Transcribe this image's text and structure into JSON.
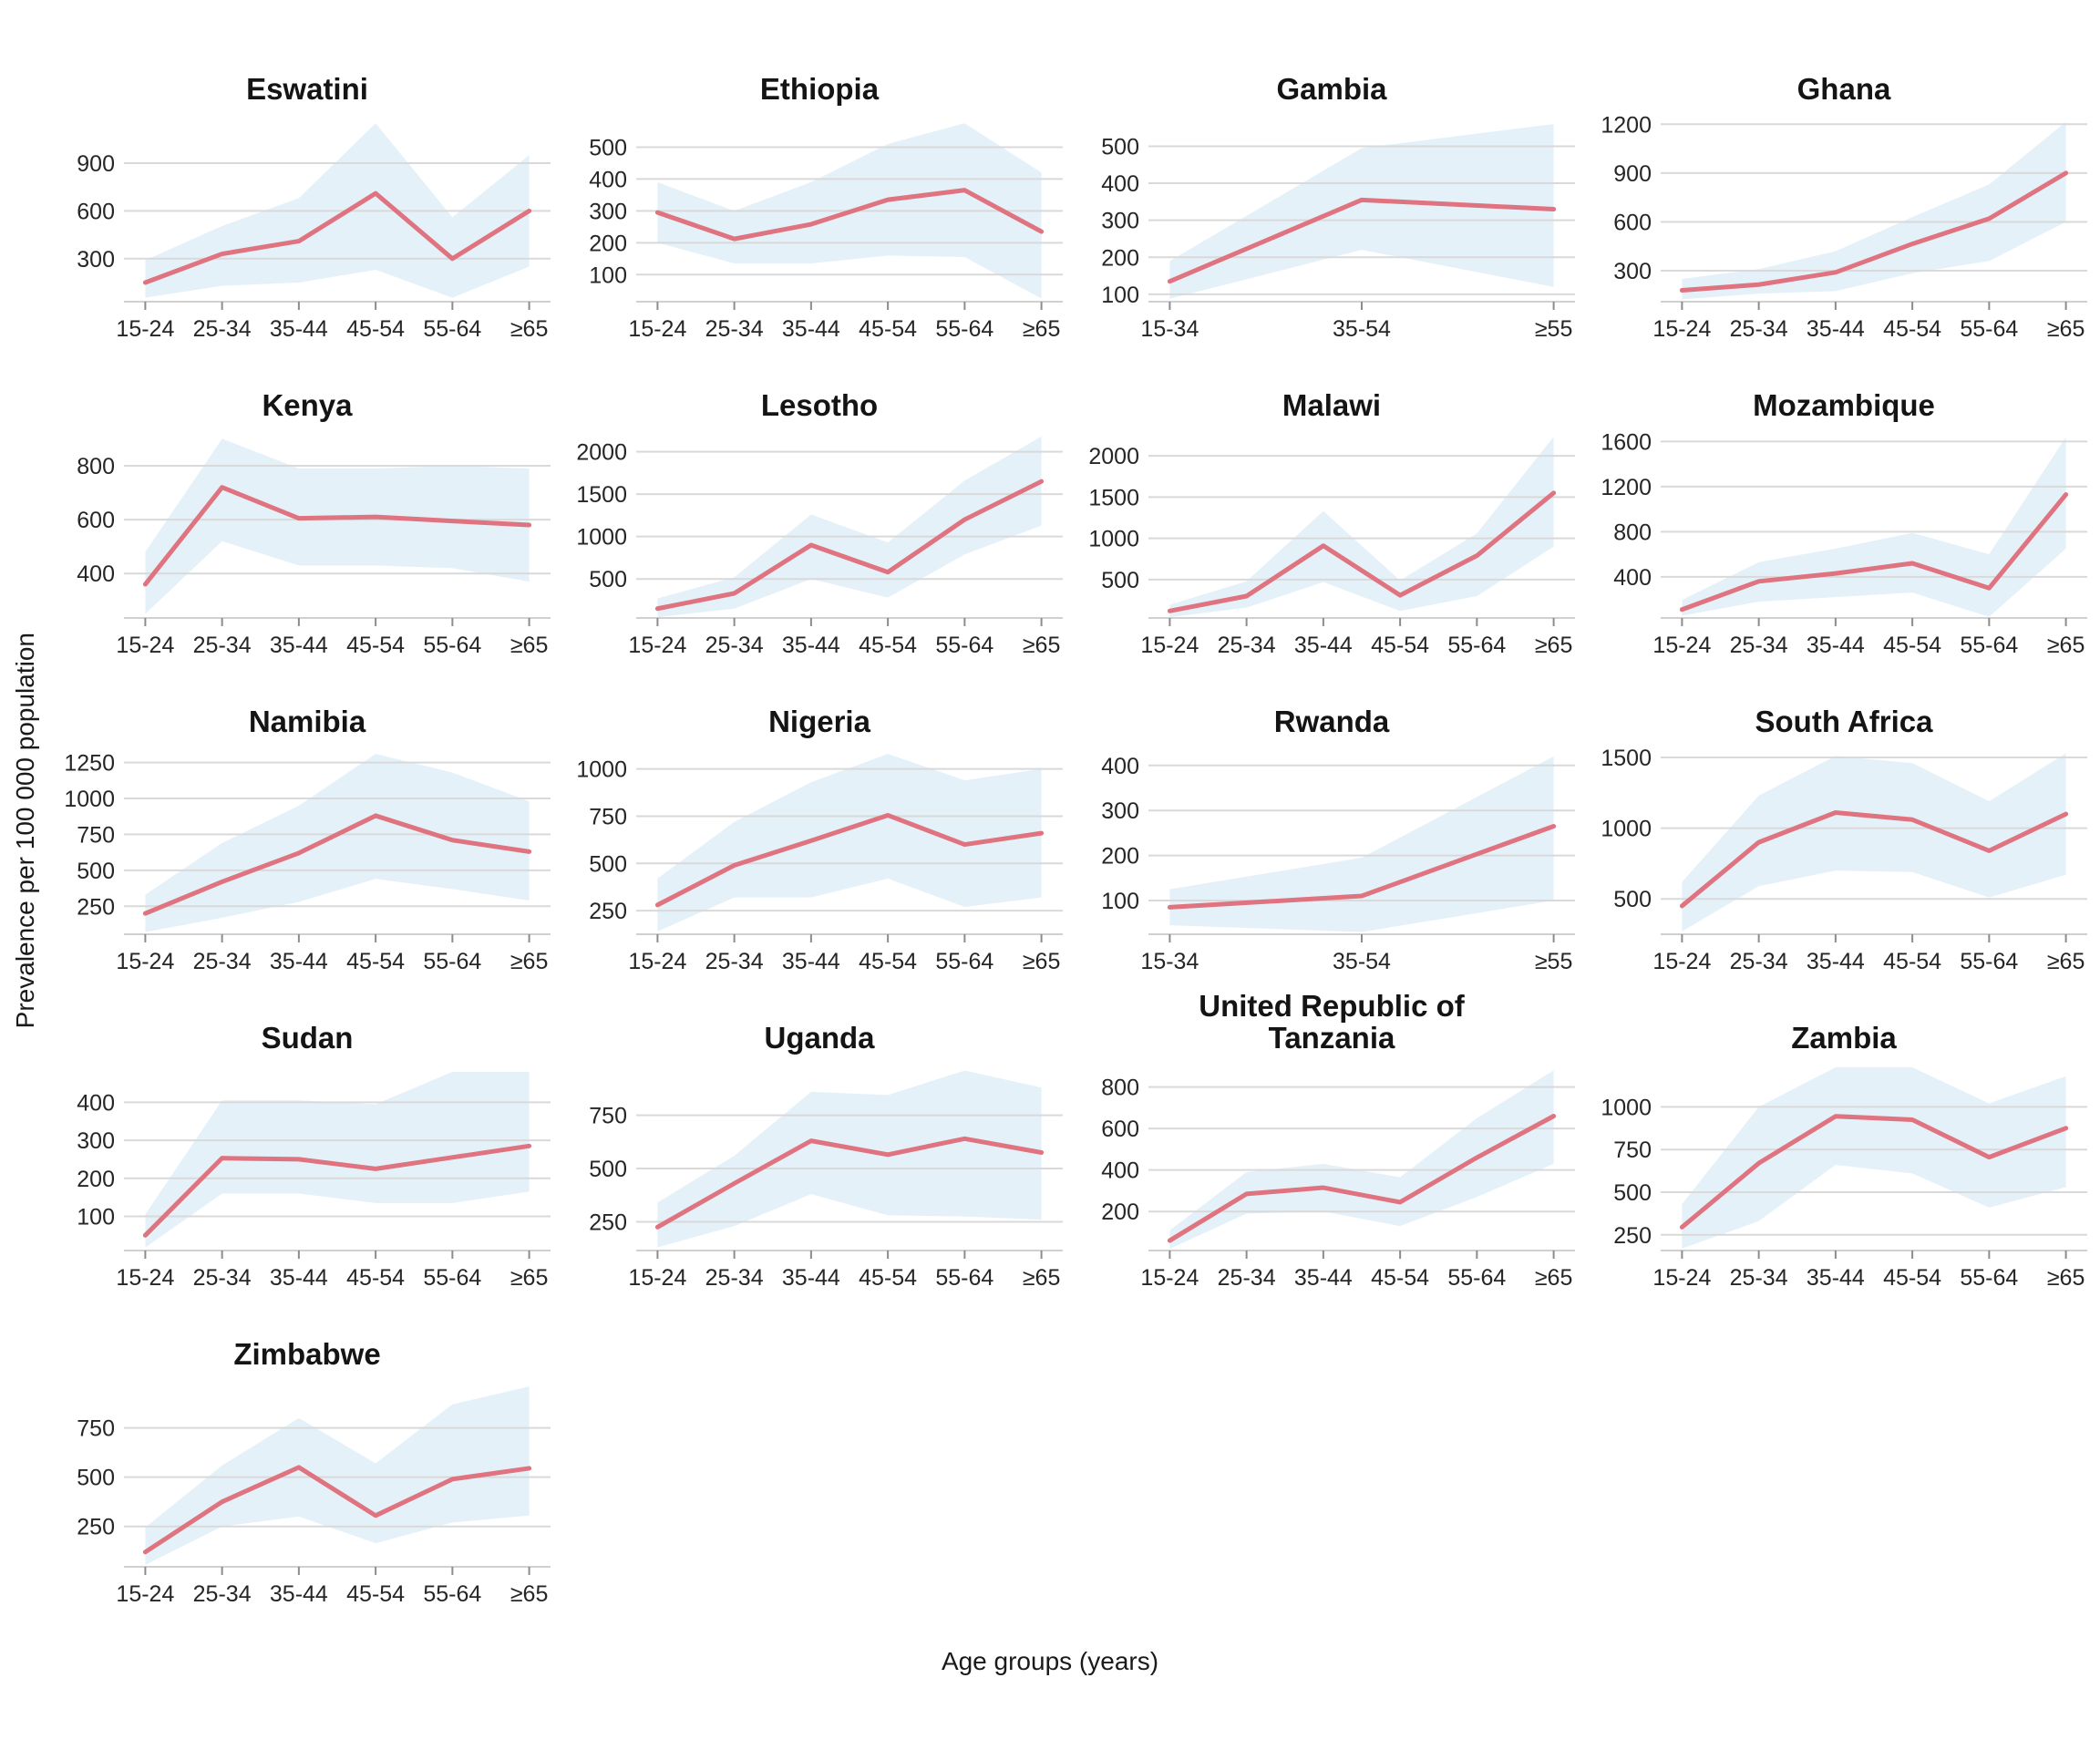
{
  "figure": {
    "y_axis_label": "Prevalence per 100 000 population",
    "x_axis_label": "Age groups (years)",
    "colors": {
      "line": "#df737f",
      "band": "#e4f1f9",
      "grid": "#d9d9d9",
      "axis_line": "#d0d0d0",
      "tick_mark": "#8c8c8c",
      "tick_text": "#262626",
      "title_text": "#141414"
    }
  },
  "chart_data": [
    {
      "type": "line",
      "title": "Eswatini",
      "categories": [
        "15-24",
        "25-34",
        "35-44",
        "45-54",
        "55-64",
        "≥65"
      ],
      "values": [
        150,
        330,
        410,
        710,
        300,
        600
      ],
      "band_lower": [
        55,
        130,
        150,
        230,
        55,
        250
      ],
      "band_upper": [
        290,
        505,
        680,
        1150,
        560,
        950
      ],
      "yticks": [
        300,
        600,
        900
      ],
      "ylim": [
        30,
        1180
      ]
    },
    {
      "type": "line",
      "title": "Ethiopia",
      "categories": [
        "15-24",
        "25-34",
        "35-44",
        "45-54",
        "55-64",
        "≥65"
      ],
      "values": [
        295,
        212,
        258,
        335,
        365,
        235
      ],
      "band_lower": [
        200,
        135,
        135,
        160,
        155,
        25
      ],
      "band_upper": [
        390,
        300,
        390,
        510,
        575,
        420
      ],
      "yticks": [
        100,
        200,
        300,
        400,
        500
      ],
      "ylim": [
        15,
        590
      ]
    },
    {
      "type": "line",
      "title": "Gambia",
      "categories": [
        "15-34",
        "35-54",
        "≥55"
      ],
      "values": [
        135,
        355,
        330
      ],
      "band_lower": [
        88,
        220,
        120
      ],
      "band_upper": [
        190,
        495,
        560
      ],
      "yticks": [
        100,
        200,
        300,
        400,
        500
      ],
      "ylim": [
        80,
        575
      ]
    },
    {
      "type": "line",
      "title": "Ghana",
      "categories": [
        "15-24",
        "25-34",
        "35-44",
        "45-54",
        "55-64",
        "≥65"
      ],
      "values": [
        180,
        215,
        290,
        465,
        620,
        900
      ],
      "band_lower": [
        125,
        160,
        175,
        285,
        360,
        600
      ],
      "band_upper": [
        250,
        310,
        420,
        630,
        830,
        1215
      ],
      "yticks": [
        300,
        600,
        900,
        1200
      ],
      "ylim": [
        110,
        1235
      ]
    },
    {
      "type": "line",
      "title": "Kenya",
      "categories": [
        "15-24",
        "25-34",
        "35-44",
        "45-54",
        "55-64",
        "≥65"
      ],
      "values": [
        360,
        720,
        605,
        610,
        595,
        580
      ],
      "band_lower": [
        250,
        520,
        430,
        430,
        420,
        370
      ],
      "band_upper": [
        480,
        900,
        790,
        790,
        800,
        790
      ],
      "yticks": [
        400,
        600,
        800
      ],
      "ylim": [
        235,
        915
      ]
    },
    {
      "type": "line",
      "title": "Lesotho",
      "categories": [
        "15-24",
        "25-34",
        "35-44",
        "45-54",
        "55-64",
        "≥65"
      ],
      "values": [
        150,
        330,
        900,
        580,
        1200,
        1650
      ],
      "band_lower": [
        50,
        150,
        500,
        280,
        790,
        1130
      ],
      "band_upper": [
        270,
        520,
        1260,
        930,
        1660,
        2180
      ],
      "yticks": [
        500,
        1000,
        1500,
        2000
      ],
      "ylim": [
        40,
        2200
      ]
    },
    {
      "type": "line",
      "title": "Malawi",
      "categories": [
        "15-24",
        "25-34",
        "35-44",
        "45-54",
        "55-64",
        "≥65"
      ],
      "values": [
        120,
        300,
        910,
        310,
        790,
        1550
      ],
      "band_lower": [
        45,
        160,
        470,
        120,
        300,
        900
      ],
      "band_upper": [
        195,
        480,
        1330,
        490,
        1060,
        2230
      ],
      "yticks": [
        500,
        1000,
        1500,
        2000
      ],
      "ylim": [
        35,
        2255
      ]
    },
    {
      "type": "line",
      "title": "Mozambique",
      "categories": [
        "15-24",
        "25-34",
        "35-44",
        "45-54",
        "55-64",
        "≥65"
      ],
      "values": [
        110,
        360,
        430,
        520,
        300,
        1130
      ],
      "band_lower": [
        55,
        180,
        220,
        260,
        45,
        650
      ],
      "band_upper": [
        195,
        530,
        650,
        790,
        600,
        1640
      ],
      "yticks": [
        400,
        800,
        1200,
        1600
      ],
      "ylim": [
        35,
        1660
      ]
    },
    {
      "type": "line",
      "title": "Namibia",
      "categories": [
        "15-24",
        "25-34",
        "35-44",
        "45-54",
        "55-64",
        "≥65"
      ],
      "values": [
        200,
        420,
        620,
        880,
        710,
        630
      ],
      "band_lower": [
        70,
        170,
        280,
        440,
        370,
        290
      ],
      "band_upper": [
        330,
        690,
        950,
        1310,
        1180,
        980
      ],
      "yticks": [
        250,
        500,
        750,
        1000,
        1250
      ],
      "ylim": [
        55,
        1330
      ]
    },
    {
      "type": "line",
      "title": "Nigeria",
      "categories": [
        "15-24",
        "25-34",
        "35-44",
        "45-54",
        "55-64",
        "≥65"
      ],
      "values": [
        280,
        490,
        620,
        755,
        600,
        660
      ],
      "band_lower": [
        140,
        320,
        320,
        420,
        270,
        320
      ],
      "band_upper": [
        420,
        720,
        930,
        1080,
        940,
        1000
      ],
      "yticks": [
        250,
        500,
        750,
        1000
      ],
      "ylim": [
        125,
        1095
      ]
    },
    {
      "type": "line",
      "title": "Rwanda",
      "categories": [
        "15-34",
        "35-54",
        "≥55"
      ],
      "values": [
        85,
        110,
        265
      ],
      "band_lower": [
        45,
        30,
        100
      ],
      "band_upper": [
        125,
        195,
        420
      ],
      "yticks": [
        100,
        200,
        300,
        400
      ],
      "ylim": [
        25,
        432
      ]
    },
    {
      "type": "line",
      "title": "South Africa",
      "categories": [
        "15-24",
        "25-34",
        "35-44",
        "45-54",
        "55-64",
        "≥65"
      ],
      "values": [
        450,
        900,
        1110,
        1060,
        840,
        1100
      ],
      "band_lower": [
        270,
        590,
        700,
        690,
        510,
        670
      ],
      "band_upper": [
        620,
        1230,
        1510,
        1460,
        1190,
        1530
      ],
      "yticks": [
        500,
        1000,
        1500
      ],
      "ylim": [
        250,
        1545
      ]
    },
    {
      "type": "line",
      "title": "Sudan",
      "categories": [
        "15-24",
        "25-34",
        "35-44",
        "45-54",
        "55-64",
        "≥65"
      ],
      "values": [
        50,
        253,
        250,
        225,
        255,
        285
      ],
      "band_lower": [
        18,
        160,
        160,
        135,
        135,
        165
      ],
      "band_upper": [
        105,
        405,
        405,
        395,
        480,
        480
      ],
      "yticks": [
        100,
        200,
        300,
        400
      ],
      "ylim": [
        10,
        492
      ]
    },
    {
      "type": "line",
      "title": "Uganda",
      "categories": [
        "15-24",
        "25-34",
        "35-44",
        "45-54",
        "55-64",
        "≥65"
      ],
      "values": [
        225,
        430,
        630,
        565,
        640,
        575
      ],
      "band_lower": [
        130,
        230,
        380,
        280,
        275,
        260
      ],
      "band_upper": [
        340,
        560,
        860,
        845,
        960,
        880
      ],
      "yticks": [
        250,
        500,
        750
      ],
      "ylim": [
        115,
        975
      ]
    },
    {
      "type": "line",
      "title": "United Republic of Tanzania",
      "categories": [
        "15-24",
        "25-34",
        "35-44",
        "45-54",
        "55-64",
        "≥65"
      ],
      "values": [
        60,
        285,
        315,
        245,
        460,
        660
      ],
      "band_lower": [
        20,
        190,
        200,
        130,
        270,
        430
      ],
      "band_upper": [
        110,
        390,
        430,
        365,
        650,
        880
      ],
      "yticks": [
        200,
        400,
        600,
        800
      ],
      "ylim": [
        12,
        895
      ]
    },
    {
      "type": "line",
      "title": "Zambia",
      "categories": [
        "15-24",
        "25-34",
        "35-44",
        "45-54",
        "55-64",
        "≥65"
      ],
      "values": [
        295,
        670,
        945,
        925,
        705,
        875
      ],
      "band_lower": [
        170,
        330,
        660,
        610,
        410,
        530
      ],
      "band_upper": [
        430,
        1000,
        1232,
        1232,
        1020,
        1180
      ],
      "yticks": [
        250,
        500,
        750,
        1000
      ],
      "ylim": [
        158,
        1232
      ]
    },
    {
      "type": "line",
      "title": "Zimbabwe",
      "categories": [
        "15-24",
        "25-34",
        "35-44",
        "45-54",
        "55-64",
        "≥65"
      ],
      "values": [
        120,
        375,
        550,
        305,
        490,
        545
      ],
      "band_lower": [
        55,
        250,
        300,
        165,
        270,
        305
      ],
      "band_upper": [
        245,
        560,
        800,
        570,
        870,
        960
      ],
      "yticks": [
        250,
        500,
        750
      ],
      "ylim": [
        45,
        975
      ]
    }
  ]
}
